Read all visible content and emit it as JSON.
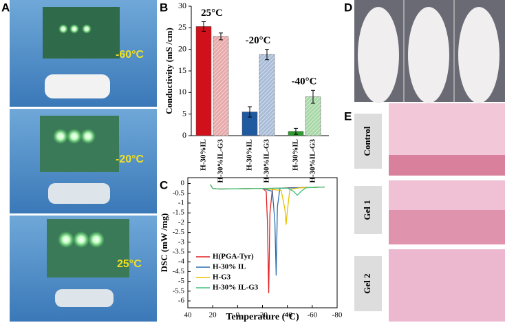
{
  "panels": {
    "labels": [
      "A",
      "B",
      "C",
      "D",
      "E"
    ],
    "photo_temperatures": [
      "-60°C",
      "-20°C",
      "25°C"
    ],
    "tissue_labels": [
      "Control",
      "Gel 1",
      "Gel 2"
    ]
  },
  "chart_data": [
    {
      "type": "bar",
      "ylabel": "Conductivity (mS /cm)",
      "categories": [
        "H-30%IL",
        "H-30%IL-G3",
        "H-30%IL",
        "H-30%IL-G3",
        "H-30%IL",
        "H-30%IL-G3"
      ],
      "values": [
        25.3,
        23,
        5.5,
        18.8,
        1,
        9
      ],
      "errors": [
        1.1,
        0.8,
        1.2,
        1.2,
        0.7,
        1.5
      ],
      "colors": [
        "#d0101a",
        "#e8a8a8",
        "#1f5aa0",
        "#a8bcd8",
        "#2f9a2f",
        "#a8d8a8"
      ],
      "hatched": [
        false,
        true,
        false,
        true,
        false,
        true
      ],
      "annotations": [
        "25°C",
        "-20°C",
        "-40°C"
      ],
      "ylim": [
        0,
        30
      ],
      "yticks": [
        0,
        5,
        10,
        15,
        20,
        25,
        30
      ]
    },
    {
      "type": "line",
      "xlabel": "Temperature (°C)",
      "ylabel": "DSC (mW /mg)",
      "xlim": [
        40,
        -80
      ],
      "xticks": [
        40,
        20,
        0,
        -20,
        -40,
        -60,
        -80
      ],
      "ylim": [
        -6.35,
        0.3
      ],
      "yticks": [
        0,
        -0.5,
        -1,
        -1.5,
        -2,
        -2.5,
        -3,
        -3.5,
        -4,
        -4.5,
        -5,
        -5.5,
        -6
      ],
      "series": [
        {
          "name": "H(PGA-Tyr)",
          "color": "#e02020",
          "x": [
            22,
            20,
            15,
            0,
            -20,
            -23,
            -24,
            -25,
            -26,
            -28,
            -40,
            -60,
            -70
          ],
          "values": [
            -0.05,
            -0.25,
            -0.28,
            -0.27,
            -0.25,
            -0.4,
            -2,
            -5.6,
            -1.5,
            -0.25,
            -0.22,
            -0.2,
            -0.18
          ]
        },
        {
          "name": "H-30% IL",
          "color": "#2a6fb0",
          "x": [
            22,
            20,
            15,
            0,
            -20,
            -28,
            -30,
            -31,
            -32,
            -34,
            -45,
            -60,
            -70
          ],
          "values": [
            -0.05,
            -0.25,
            -0.28,
            -0.27,
            -0.25,
            -0.4,
            -2,
            -4.7,
            -1.2,
            -0.25,
            -0.22,
            -0.2,
            -0.18
          ]
        },
        {
          "name": "H-G3",
          "color": "#e8c000",
          "x": [
            22,
            20,
            15,
            0,
            -20,
            -35,
            -38,
            -39,
            -40,
            -42,
            -50,
            -60,
            -70
          ],
          "values": [
            -0.05,
            -0.25,
            -0.28,
            -0.27,
            -0.25,
            -0.35,
            -1.3,
            -2.1,
            -1.4,
            -0.3,
            -0.22,
            -0.2,
            -0.18
          ]
        },
        {
          "name": "H-30% IL-G3",
          "color": "#40c080",
          "x": [
            22,
            20,
            15,
            0,
            -20,
            -40,
            -45,
            -48,
            -51,
            -55,
            -60,
            -70
          ],
          "values": [
            -0.05,
            -0.25,
            -0.28,
            -0.27,
            -0.25,
            -0.23,
            -0.4,
            -0.6,
            -0.4,
            -0.22,
            -0.2,
            -0.18
          ]
        }
      ]
    }
  ]
}
